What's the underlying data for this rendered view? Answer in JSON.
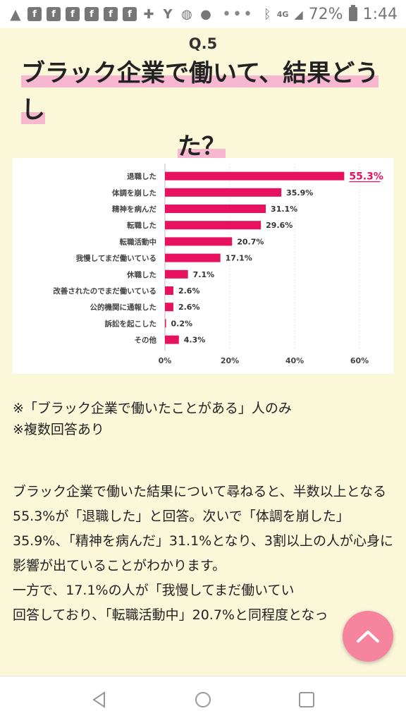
{
  "status_bar": {
    "left_icons": [
      "warning-icon",
      "facebook-icon",
      "facebook-icon",
      "facebook-icon",
      "facebook-icon",
      "facebook-icon",
      "facebook-icon",
      "chat-icon",
      "yahoo-icon",
      "globe-icon",
      "app-icon"
    ],
    "more": "•••",
    "network": "4G",
    "battery": "72%",
    "time": "1:44"
  },
  "header": {
    "qnum": "Q.5",
    "title_line1": "ブラック企業で働いて、結果どうし",
    "title_line2": "た？"
  },
  "chart_data": {
    "type": "bar",
    "orientation": "horizontal",
    "categories": [
      "退職した",
      "体調を崩した",
      "精神を病んだ",
      "転職した",
      "転職活動中",
      "我慢してまだ働いている",
      "休職した",
      "改善されたのでまだ働いている",
      "公的機関に通報した",
      "訴訟を起こした",
      "その他"
    ],
    "values": [
      55.3,
      35.9,
      31.1,
      29.6,
      20.7,
      17.1,
      7.1,
      2.6,
      2.6,
      0.2,
      4.3
    ],
    "value_labels": [
      "55.3%",
      "35.9%",
      "31.1%",
      "29.6%",
      "20.7%",
      "17.1%",
      "7.1%",
      "2.6%",
      "2.6%",
      "0.2%",
      "4.3%"
    ],
    "highlight_index": 0,
    "xlim": [
      0,
      60
    ],
    "xticks": [
      "0%",
      "20%",
      "40%",
      "60%"
    ],
    "color": "#e6115f",
    "highlight_color": "#e6115f",
    "grid": true,
    "legend": "none"
  },
  "notes": [
    "※「ブラック企業で働いたことがある」人のみ",
    "※複数回答あり"
  ],
  "paragraphs": [
    "ブラック企業で働いた結果について尋ねると、半数以上となる55.3%が「退職した」と回答。次いで「体調を崩した」35.9%、「精神を病んだ」31.1%となり、3割以上の人が心身に影響が出ていることがわかります。",
    "一方で、17.1%の人が「我慢してまだ働いてい",
    "回答しており、「転職活動中」20.7%と同程度となっ"
  ],
  "colors": {
    "accent": "#e6115f",
    "background": "#fbf7d9",
    "scroll_button": "#f7849f"
  }
}
